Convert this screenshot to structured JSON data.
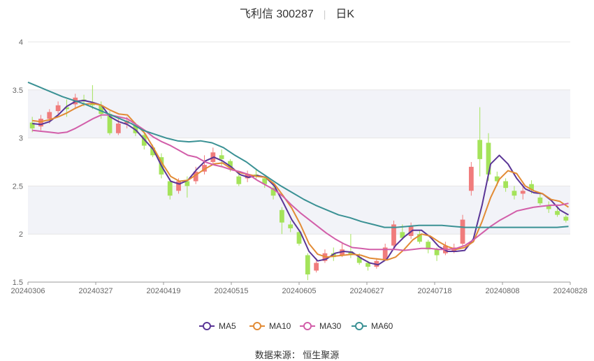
{
  "header": {
    "stock": "飞利信 300287",
    "period": "日K"
  },
  "footer": {
    "source": "数据来源： 恒生聚源"
  },
  "chart_data": {
    "type": "candlestick",
    "ylim": [
      1.5,
      4
    ],
    "yticks": [
      "1.5",
      "2",
      "2.5",
      "3",
      "3.5",
      "4"
    ],
    "xticks": [
      "20240306",
      "20240327",
      "20240419",
      "20240515",
      "20240605",
      "20240627",
      "20240718",
      "20240808",
      "20240828"
    ],
    "grid": "horizontal, alternating bands",
    "colors": {
      "up": "#f07c7c",
      "down": "#a4e35a",
      "band": "#f2f3f8"
    },
    "series": [
      {
        "name": "MA5",
        "color": "#5a3596",
        "values": [
          3.15,
          3.14,
          3.17,
          3.24,
          3.33,
          3.38,
          3.39,
          3.37,
          3.34,
          3.22,
          3.17,
          3.14,
          3.08,
          2.98,
          2.88,
          2.7,
          2.55,
          2.52,
          2.56,
          2.67,
          2.76,
          2.8,
          2.76,
          2.7,
          2.62,
          2.59,
          2.61,
          2.59,
          2.5,
          2.33,
          2.15,
          2.02,
          1.82,
          1.72,
          1.74,
          1.8,
          1.82,
          1.81,
          1.75,
          1.7,
          1.68,
          1.74,
          1.88,
          1.97,
          2.04,
          2.04,
          1.97,
          1.87,
          1.82,
          1.82,
          1.83,
          1.95,
          2.3,
          2.73,
          2.82,
          2.73,
          2.58,
          2.47,
          2.43,
          2.42,
          2.35,
          2.25,
          2.2
        ]
      },
      {
        "name": "MA10",
        "color": "#e28b35",
        "values": [
          3.18,
          3.17,
          3.19,
          3.22,
          3.26,
          3.31,
          3.35,
          3.36,
          3.34,
          3.29,
          3.25,
          3.24,
          3.14,
          3.05,
          2.9,
          2.74,
          2.6,
          2.55,
          2.56,
          2.62,
          2.68,
          2.73,
          2.74,
          2.68,
          2.64,
          2.62,
          2.6,
          2.59,
          2.52,
          2.4,
          2.27,
          2.1,
          1.9,
          1.79,
          1.76,
          1.77,
          1.78,
          1.79,
          1.78,
          1.75,
          1.74,
          1.73,
          1.76,
          1.84,
          1.94,
          2.0,
          1.98,
          1.92,
          1.87,
          1.84,
          1.86,
          1.92,
          2.13,
          2.38,
          2.57,
          2.66,
          2.63,
          2.5,
          2.45,
          2.42,
          2.36,
          2.34,
          2.28
        ]
      },
      {
        "name": "MA30",
        "color": "#d25ea9",
        "values": [
          3.08,
          3.07,
          3.06,
          3.05,
          3.06,
          3.1,
          3.15,
          3.2,
          3.24,
          3.24,
          3.22,
          3.2,
          3.14,
          3.08,
          3.01,
          2.96,
          2.92,
          2.87,
          2.82,
          2.8,
          2.75,
          2.72,
          2.7,
          2.67,
          2.65,
          2.62,
          2.56,
          2.51,
          2.46,
          2.39,
          2.3,
          2.22,
          2.15,
          2.08,
          2.01,
          1.95,
          1.9,
          1.86,
          1.85,
          1.84,
          1.84,
          1.84,
          1.84,
          1.83,
          1.84,
          1.85,
          1.85,
          1.84,
          1.84,
          1.85,
          1.88,
          1.94,
          2.01,
          2.08,
          2.14,
          2.19,
          2.24,
          2.26,
          2.28,
          2.29,
          2.3,
          2.3,
          2.32
        ]
      },
      {
        "name": "MA60",
        "color": "#3a9194",
        "values": [
          3.58,
          3.53,
          3.48,
          3.43,
          3.39,
          3.35,
          3.3,
          3.25,
          3.2,
          3.15,
          3.08,
          3.04,
          3.0,
          2.97,
          2.96,
          2.97,
          2.95,
          2.9,
          2.82,
          2.75,
          2.66,
          2.58,
          2.5,
          2.43,
          2.36,
          2.3,
          2.25,
          2.2,
          2.17,
          2.13,
          2.1,
          2.07,
          2.07,
          2.08,
          2.09,
          2.09,
          2.09,
          2.08,
          2.07,
          2.07,
          2.07,
          2.07,
          2.07,
          2.07,
          2.07,
          2.07,
          2.07,
          2.08
        ]
      }
    ],
    "candles": [
      [
        3.16,
        3.1,
        3.22,
        3.06
      ],
      [
        3.12,
        3.2,
        3.24,
        3.08
      ],
      [
        3.2,
        3.27,
        3.3,
        3.15
      ],
      [
        3.28,
        3.34,
        3.38,
        3.25
      ],
      [
        3.32,
        3.3,
        3.4,
        3.22
      ],
      [
        3.35,
        3.42,
        3.46,
        3.3
      ],
      [
        3.4,
        3.38,
        3.45,
        3.33
      ],
      [
        3.36,
        3.34,
        3.55,
        3.3
      ],
      [
        3.34,
        3.25,
        3.38,
        3.2
      ],
      [
        3.25,
        3.05,
        3.28,
        3.03
      ],
      [
        3.05,
        3.15,
        3.2,
        3.03
      ],
      [
        3.15,
        3.18,
        3.22,
        3.1
      ],
      [
        3.14,
        3.05,
        3.16,
        3.02
      ],
      [
        3.03,
        2.92,
        3.05,
        2.88
      ],
      [
        2.9,
        2.82,
        2.93,
        2.8
      ],
      [
        2.8,
        2.62,
        2.84,
        2.58
      ],
      [
        2.55,
        2.4,
        2.58,
        2.36
      ],
      [
        2.45,
        2.55,
        2.58,
        2.42
      ],
      [
        2.55,
        2.5,
        2.6,
        2.38
      ],
      [
        2.55,
        2.65,
        2.7,
        2.52
      ],
      [
        2.65,
        2.72,
        2.82,
        2.62
      ],
      [
        2.75,
        2.85,
        2.9,
        2.72
      ],
      [
        2.82,
        2.78,
        2.88,
        2.7
      ],
      [
        2.76,
        2.7,
        2.78,
        2.65
      ],
      [
        2.6,
        2.52,
        2.62,
        2.5
      ],
      [
        2.58,
        2.62,
        2.66,
        2.54
      ],
      [
        2.62,
        2.6,
        2.68,
        2.56
      ],
      [
        2.58,
        2.52,
        2.6,
        2.48
      ],
      [
        2.48,
        2.4,
        2.5,
        2.36
      ],
      [
        2.25,
        2.12,
        2.28,
        2.0
      ],
      [
        2.1,
        2.06,
        2.14,
        2.02
      ],
      [
        2.02,
        1.9,
        2.05,
        1.88
      ],
      [
        1.78,
        1.58,
        1.8,
        1.52
      ],
      [
        1.62,
        1.7,
        1.75,
        1.6
      ],
      [
        1.72,
        1.8,
        1.84,
        1.7
      ],
      [
        1.8,
        1.76,
        1.86,
        1.72
      ],
      [
        1.78,
        1.84,
        1.9,
        1.76
      ],
      [
        1.82,
        1.78,
        2.0,
        1.75
      ],
      [
        1.76,
        1.7,
        1.8,
        1.68
      ],
      [
        1.7,
        1.66,
        1.72,
        1.62
      ],
      [
        1.66,
        1.72,
        1.75,
        1.64
      ],
      [
        1.74,
        1.86,
        1.9,
        1.72
      ],
      [
        1.88,
        2.1,
        2.14,
        1.85
      ],
      [
        2.02,
        1.96,
        2.1,
        1.94
      ],
      [
        1.98,
        2.08,
        2.12,
        1.95
      ],
      [
        2.0,
        1.92,
        2.04,
        1.9
      ],
      [
        1.92,
        1.84,
        1.94,
        1.8
      ],
      [
        1.84,
        1.78,
        1.86,
        1.72
      ],
      [
        1.8,
        1.88,
        1.92,
        1.78
      ],
      [
        1.82,
        1.86,
        1.9,
        1.8
      ],
      [
        1.9,
        2.15,
        2.2,
        1.88
      ],
      [
        2.45,
        2.7,
        2.75,
        2.4
      ],
      [
        2.98,
        2.78,
        3.32,
        2.6
      ],
      [
        2.95,
        2.62,
        3.05,
        2.55
      ],
      [
        2.6,
        2.55,
        2.65,
        2.5
      ],
      [
        2.55,
        2.48,
        2.58,
        2.44
      ],
      [
        2.45,
        2.4,
        2.5,
        2.36
      ],
      [
        2.42,
        2.45,
        2.52,
        2.36
      ],
      [
        2.52,
        2.46,
        2.56,
        2.42
      ],
      [
        2.38,
        2.32,
        2.42,
        2.3
      ],
      [
        2.3,
        2.26,
        2.34,
        2.22
      ],
      [
        2.24,
        2.2,
        2.28,
        2.18
      ],
      [
        2.18,
        2.14,
        2.2,
        2.12
      ]
    ]
  }
}
